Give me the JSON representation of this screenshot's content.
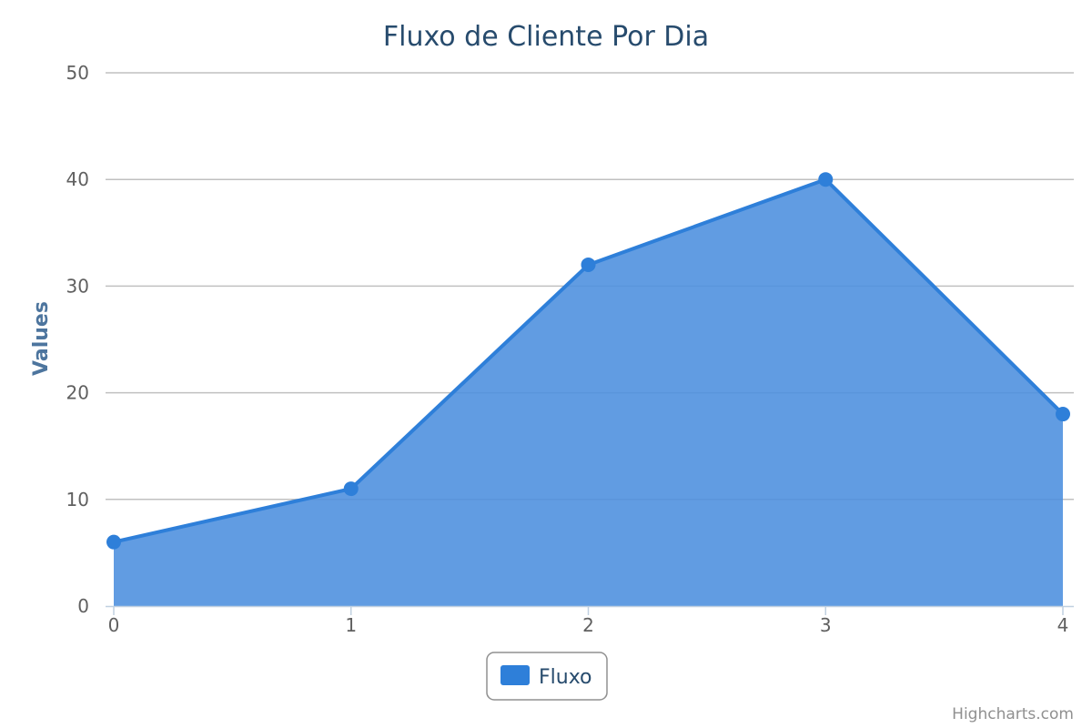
{
  "chart_data": {
    "type": "area",
    "title": "Fluxo de Cliente Por Dia",
    "ylabel": "Values",
    "xlabel": "",
    "x": [
      0,
      1,
      2,
      3,
      4
    ],
    "series": [
      {
        "name": "Fluxo",
        "values": [
          6,
          11,
          32,
          40,
          18
        ]
      }
    ],
    "ylim": [
      0,
      50
    ],
    "xlim": [
      0,
      4
    ],
    "y_ticks": [
      0,
      10,
      20,
      30,
      40,
      50
    ],
    "x_ticks": [
      0,
      1,
      2,
      3,
      4
    ],
    "grid": true,
    "legend_position": "bottom-center",
    "colors": {
      "series_line": "#2e7fd9",
      "series_fill": "#4b8ede",
      "grid": "#c0c0c0",
      "title": "#274b6d",
      "axis_title": "#4d759e"
    }
  },
  "credits": "Highcharts.com"
}
